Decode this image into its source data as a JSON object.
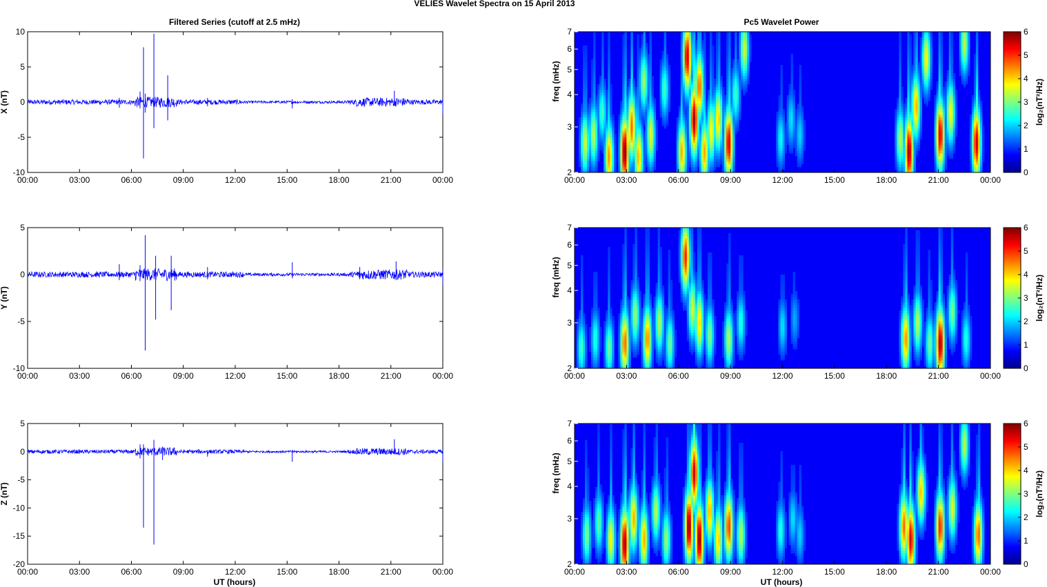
{
  "figure": {
    "title": "VELIES Wavelet Spectra on 15 April     2013",
    "left_column_title": "Filtered Series (cutoff at 2.5 mHz)",
    "right_column_title": "Pc5 Wavelet Power",
    "x_axis_label": "UT (hours)",
    "x_ticks": [
      "00:00",
      "03:00",
      "06:00",
      "09:00",
      "12:00",
      "15:00",
      "18:00",
      "21:00",
      "00:00"
    ],
    "colormap": "jet",
    "series_color": "#0000ff"
  },
  "chart_data": [
    {
      "type": "line",
      "panel": "time-series-x",
      "ylabel": "X (nT)",
      "ylim": [
        -10,
        10
      ],
      "yticks": [
        -10,
        -5,
        0,
        5,
        10
      ],
      "xlim_hours": [
        0,
        24
      ],
      "noise_amplitude": 0.35,
      "spikes": [
        {
          "t": 5.3,
          "min": -0.8,
          "max": 0.6
        },
        {
          "t": 6.5,
          "min": -0.9,
          "max": 1.5
        },
        {
          "t": 6.7,
          "min": -8.0,
          "max": 7.8
        },
        {
          "t": 6.8,
          "min": -1.5,
          "max": 1.2
        },
        {
          "t": 7.3,
          "min": -3.7,
          "max": 9.7
        },
        {
          "t": 8.1,
          "min": -2.6,
          "max": 3.8
        },
        {
          "t": 10.4,
          "min": -0.6,
          "max": 0.6
        },
        {
          "t": 15.3,
          "min": -0.9,
          "max": 0.4
        },
        {
          "t": 21.2,
          "min": -0.5,
          "max": 1.6
        },
        {
          "t": 24.0,
          "min": -1.7,
          "max": 0.3
        }
      ]
    },
    {
      "type": "line",
      "panel": "time-series-y",
      "ylabel": "Y (nT)",
      "ylim": [
        -10,
        5
      ],
      "yticks": [
        -10,
        -5,
        0,
        5
      ],
      "xlim_hours": [
        0,
        24
      ],
      "noise_amplitude": 0.3,
      "spikes": [
        {
          "t": 5.3,
          "min": -0.6,
          "max": 1.1
        },
        {
          "t": 6.5,
          "min": -0.7,
          "max": 1.0
        },
        {
          "t": 6.8,
          "min": -8.1,
          "max": 4.2
        },
        {
          "t": 7.4,
          "min": -4.8,
          "max": 2.0
        },
        {
          "t": 8.3,
          "min": -3.8,
          "max": 2.0
        },
        {
          "t": 10.4,
          "min": -0.5,
          "max": 0.8
        },
        {
          "t": 15.3,
          "min": -0.4,
          "max": 1.3
        },
        {
          "t": 19.2,
          "min": -0.5,
          "max": 0.8
        },
        {
          "t": 21.3,
          "min": -0.6,
          "max": 1.4
        },
        {
          "t": 24.0,
          "min": -1.0,
          "max": 0.6
        }
      ]
    },
    {
      "type": "line",
      "panel": "time-series-z",
      "ylabel": "Z (nT)",
      "ylim": [
        -20,
        5
      ],
      "yticks": [
        -20,
        -15,
        -10,
        -5,
        0,
        5
      ],
      "xlim_hours": [
        0,
        24
      ],
      "noise_amplitude": 0.35,
      "spikes": [
        {
          "t": 6.5,
          "min": -1.2,
          "max": 1.3
        },
        {
          "t": 6.7,
          "min": -13.5,
          "max": 1.3
        },
        {
          "t": 7.3,
          "min": -16.5,
          "max": 2.1
        },
        {
          "t": 7.8,
          "min": -1.5,
          "max": 0.9
        },
        {
          "t": 10.4,
          "min": -0.9,
          "max": 0.3
        },
        {
          "t": 15.3,
          "min": -1.8,
          "max": 0.3
        },
        {
          "t": 21.2,
          "min": -0.3,
          "max": 2.2
        },
        {
          "t": 24.0,
          "min": -1.8,
          "max": 0.3
        }
      ]
    },
    {
      "type": "heatmap",
      "panel": "wavelet-x",
      "ylabel": "freq (mHz)",
      "ylim": [
        2,
        7
      ],
      "y_scale": "log",
      "yticks": [
        2,
        3,
        4,
        5,
        6,
        7
      ],
      "colorbar_label": "log₂(nT²/Hz)",
      "clim": [
        0,
        6
      ],
      "colorbar_ticks": [
        0,
        1,
        2,
        3,
        4,
        5,
        6
      ],
      "xlim_hours": [
        0,
        24
      ],
      "blobs": [
        {
          "t": 0.6,
          "f": 2.6,
          "power": 3.2
        },
        {
          "t": 1.1,
          "f": 2.8,
          "power": 3.0
        },
        {
          "t": 1.6,
          "f": 3.4,
          "power": 2.2
        },
        {
          "t": 2.0,
          "f": 2.3,
          "power": 4.2
        },
        {
          "t": 2.9,
          "f": 2.4,
          "power": 6.0
        },
        {
          "t": 3.3,
          "f": 3.0,
          "power": 4.5
        },
        {
          "t": 3.7,
          "f": 2.3,
          "power": 4.0
        },
        {
          "t": 4.0,
          "f": 4.5,
          "power": 2.8
        },
        {
          "t": 4.4,
          "f": 2.8,
          "power": 3.3
        },
        {
          "t": 5.2,
          "f": 4.2,
          "power": 2.2
        },
        {
          "t": 6.2,
          "f": 2.4,
          "power": 4.0
        },
        {
          "t": 6.5,
          "f": 5.6,
          "power": 5.5
        },
        {
          "t": 6.9,
          "f": 3.2,
          "power": 5.8
        },
        {
          "t": 7.2,
          "f": 4.3,
          "power": 4.5
        },
        {
          "t": 7.5,
          "f": 2.4,
          "power": 4.0
        },
        {
          "t": 7.9,
          "f": 2.9,
          "power": 3.5
        },
        {
          "t": 8.3,
          "f": 3.2,
          "power": 3.8
        },
        {
          "t": 8.9,
          "f": 2.6,
          "power": 5.5
        },
        {
          "t": 9.3,
          "f": 4.0,
          "power": 2.2
        },
        {
          "t": 9.8,
          "f": 6.0,
          "power": 3.2
        },
        {
          "t": 11.9,
          "f": 2.7,
          "power": 1.8
        },
        {
          "t": 12.5,
          "f": 3.2,
          "power": 1.6
        },
        {
          "t": 13.0,
          "f": 2.8,
          "power": 1.5
        },
        {
          "t": 18.8,
          "f": 2.7,
          "power": 3.0
        },
        {
          "t": 19.3,
          "f": 2.4,
          "power": 5.9
        },
        {
          "t": 19.7,
          "f": 3.6,
          "power": 4.0
        },
        {
          "t": 20.3,
          "f": 5.5,
          "power": 3.5
        },
        {
          "t": 21.1,
          "f": 2.8,
          "power": 5.5
        },
        {
          "t": 21.7,
          "f": 3.4,
          "power": 3.5
        },
        {
          "t": 22.5,
          "f": 6.3,
          "power": 3.0
        },
        {
          "t": 23.2,
          "f": 2.6,
          "power": 5.5
        }
      ]
    },
    {
      "type": "heatmap",
      "panel": "wavelet-y",
      "ylabel": "freq (mHz)",
      "ylim": [
        2,
        7
      ],
      "y_scale": "log",
      "yticks": [
        2,
        3,
        4,
        5,
        6,
        7
      ],
      "colorbar_label": "log₂(nT²/Hz)",
      "clim": [
        0,
        6
      ],
      "colorbar_ticks": [
        0,
        1,
        2,
        3,
        4,
        5,
        6
      ],
      "xlim_hours": [
        0,
        24
      ],
      "blobs": [
        {
          "t": 0.4,
          "f": 2.4,
          "power": 2.2
        },
        {
          "t": 1.2,
          "f": 2.6,
          "power": 2.0
        },
        {
          "t": 2.0,
          "f": 2.4,
          "power": 2.5
        },
        {
          "t": 2.9,
          "f": 2.5,
          "power": 4.5
        },
        {
          "t": 3.5,
          "f": 3.2,
          "power": 2.8
        },
        {
          "t": 4.2,
          "f": 2.6,
          "power": 4.3
        },
        {
          "t": 4.9,
          "f": 3.0,
          "power": 3.0
        },
        {
          "t": 5.5,
          "f": 2.5,
          "power": 2.5
        },
        {
          "t": 6.4,
          "f": 5.4,
          "power": 5.0
        },
        {
          "t": 6.8,
          "f": 3.4,
          "power": 3.2
        },
        {
          "t": 7.2,
          "f": 3.0,
          "power": 3.8
        },
        {
          "t": 7.8,
          "f": 2.7,
          "power": 2.6
        },
        {
          "t": 8.9,
          "f": 2.6,
          "power": 3.0
        },
        {
          "t": 9.6,
          "f": 3.0,
          "power": 2.0
        },
        {
          "t": 12.0,
          "f": 2.9,
          "power": 1.6
        },
        {
          "t": 12.7,
          "f": 3.1,
          "power": 1.2
        },
        {
          "t": 19.1,
          "f": 2.6,
          "power": 4.2
        },
        {
          "t": 19.8,
          "f": 3.0,
          "power": 3.0
        },
        {
          "t": 20.5,
          "f": 2.5,
          "power": 2.5
        },
        {
          "t": 21.1,
          "f": 2.5,
          "power": 5.8
        },
        {
          "t": 21.8,
          "f": 3.3,
          "power": 2.6
        },
        {
          "t": 22.6,
          "f": 2.6,
          "power": 2.0
        }
      ]
    },
    {
      "type": "heatmap",
      "panel": "wavelet-z",
      "ylabel": "freq (mHz)",
      "ylim": [
        2,
        7
      ],
      "y_scale": "log",
      "yticks": [
        2,
        3,
        4,
        5,
        6,
        7
      ],
      "colorbar_label": "log₂(nT²/Hz)",
      "clim": [
        0,
        6
      ],
      "colorbar_ticks": [
        0,
        1,
        2,
        3,
        4,
        5,
        6
      ],
      "xlim_hours": [
        0,
        24
      ],
      "blobs": [
        {
          "t": 0.7,
          "f": 2.6,
          "power": 2.6
        },
        {
          "t": 1.4,
          "f": 2.9,
          "power": 2.4
        },
        {
          "t": 2.1,
          "f": 2.5,
          "power": 3.5
        },
        {
          "t": 2.9,
          "f": 2.4,
          "power": 5.8
        },
        {
          "t": 3.4,
          "f": 3.0,
          "power": 4.0
        },
        {
          "t": 4.0,
          "f": 2.5,
          "power": 4.0
        },
        {
          "t": 4.7,
          "f": 3.2,
          "power": 3.0
        },
        {
          "t": 5.3,
          "f": 2.5,
          "power": 2.8
        },
        {
          "t": 6.6,
          "f": 2.8,
          "power": 6.0
        },
        {
          "t": 6.9,
          "f": 4.5,
          "power": 5.5
        },
        {
          "t": 7.2,
          "f": 2.5,
          "power": 6.0
        },
        {
          "t": 7.8,
          "f": 3.2,
          "power": 4.0
        },
        {
          "t": 8.3,
          "f": 2.5,
          "power": 3.8
        },
        {
          "t": 8.9,
          "f": 2.8,
          "power": 4.8
        },
        {
          "t": 9.6,
          "f": 2.6,
          "power": 3.0
        },
        {
          "t": 11.9,
          "f": 2.7,
          "power": 2.0
        },
        {
          "t": 12.6,
          "f": 3.0,
          "power": 1.6
        },
        {
          "t": 13.0,
          "f": 2.6,
          "power": 1.5
        },
        {
          "t": 19.0,
          "f": 2.8,
          "power": 4.5
        },
        {
          "t": 19.4,
          "f": 2.5,
          "power": 5.5
        },
        {
          "t": 20.0,
          "f": 3.8,
          "power": 3.8
        },
        {
          "t": 21.1,
          "f": 2.8,
          "power": 5.0
        },
        {
          "t": 21.8,
          "f": 3.3,
          "power": 3.3
        },
        {
          "t": 22.5,
          "f": 5.8,
          "power": 3.0
        },
        {
          "t": 23.3,
          "f": 2.6,
          "power": 4.5
        }
      ]
    }
  ]
}
